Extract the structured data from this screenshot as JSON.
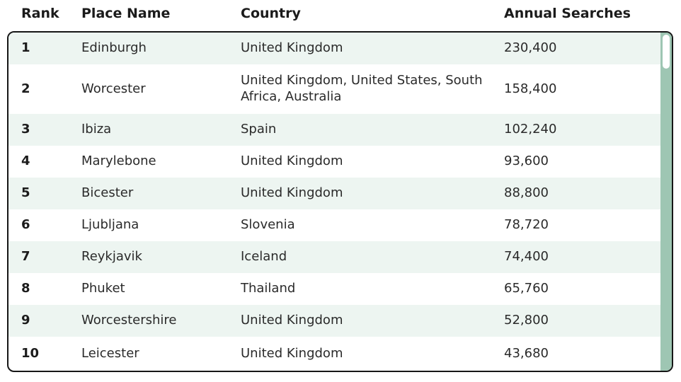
{
  "table": {
    "columns": [
      {
        "label": "Rank"
      },
      {
        "label": "Place Name"
      },
      {
        "label": "Country"
      },
      {
        "label": "Annual Searches"
      }
    ],
    "rows": [
      {
        "rank": "1",
        "place": "Edinburgh",
        "country": "United Kingdom",
        "searches": "230,400"
      },
      {
        "rank": "2",
        "place": "Worcester",
        "country": "United Kingdom, United States, South Africa, Australia",
        "searches": "158,400"
      },
      {
        "rank": "3",
        "place": "Ibiza",
        "country": "Spain",
        "searches": "102,240"
      },
      {
        "rank": "4",
        "place": "Marylebone",
        "country": "United Kingdom",
        "searches": "93,600"
      },
      {
        "rank": "5",
        "place": "Bicester",
        "country": "United Kingdom",
        "searches": "88,800"
      },
      {
        "rank": "6",
        "place": "Ljubljana",
        "country": "Slovenia",
        "searches": "78,720"
      },
      {
        "rank": "7",
        "place": "Reykjavik",
        "country": "Iceland",
        "searches": "74,400"
      },
      {
        "rank": "8",
        "place": "Phuket",
        "country": "Thailand",
        "searches": "65,760"
      },
      {
        "rank": "9",
        "place": "Worcestershire",
        "country": "United Kingdom",
        "searches": "52,800"
      },
      {
        "rank": "10",
        "place": "Leicester",
        "country": "United Kingdom",
        "searches": "43,680"
      }
    ]
  },
  "colors": {
    "row_alt_background": "#edf5f1",
    "table_border": "#161616",
    "scrollbar_track": "#9ec6b3",
    "scrollbar_thumb": "#ffffff",
    "header_text": "#1b1b1b",
    "body_text": "#2a2a2a"
  },
  "chart_data": {
    "type": "table",
    "columns": [
      "Rank",
      "Place Name",
      "Country",
      "Annual Searches"
    ],
    "rows": [
      [
        1,
        "Edinburgh",
        "United Kingdom",
        230400
      ],
      [
        2,
        "Worcester",
        "United Kingdom, United States, South Africa, Australia",
        158400
      ],
      [
        3,
        "Ibiza",
        "Spain",
        102240
      ],
      [
        4,
        "Marylebone",
        "United Kingdom",
        93600
      ],
      [
        5,
        "Bicester",
        "United Kingdom",
        88800
      ],
      [
        6,
        "Ljubljana",
        "Slovenia",
        78720
      ],
      [
        7,
        "Reykjavik",
        "Iceland",
        74400
      ],
      [
        8,
        "Phuket",
        "Thailand",
        65760
      ],
      [
        9,
        "Worcestershire",
        "United Kingdom",
        52800
      ],
      [
        10,
        "Leicester",
        "United Kingdom",
        43680
      ]
    ]
  }
}
